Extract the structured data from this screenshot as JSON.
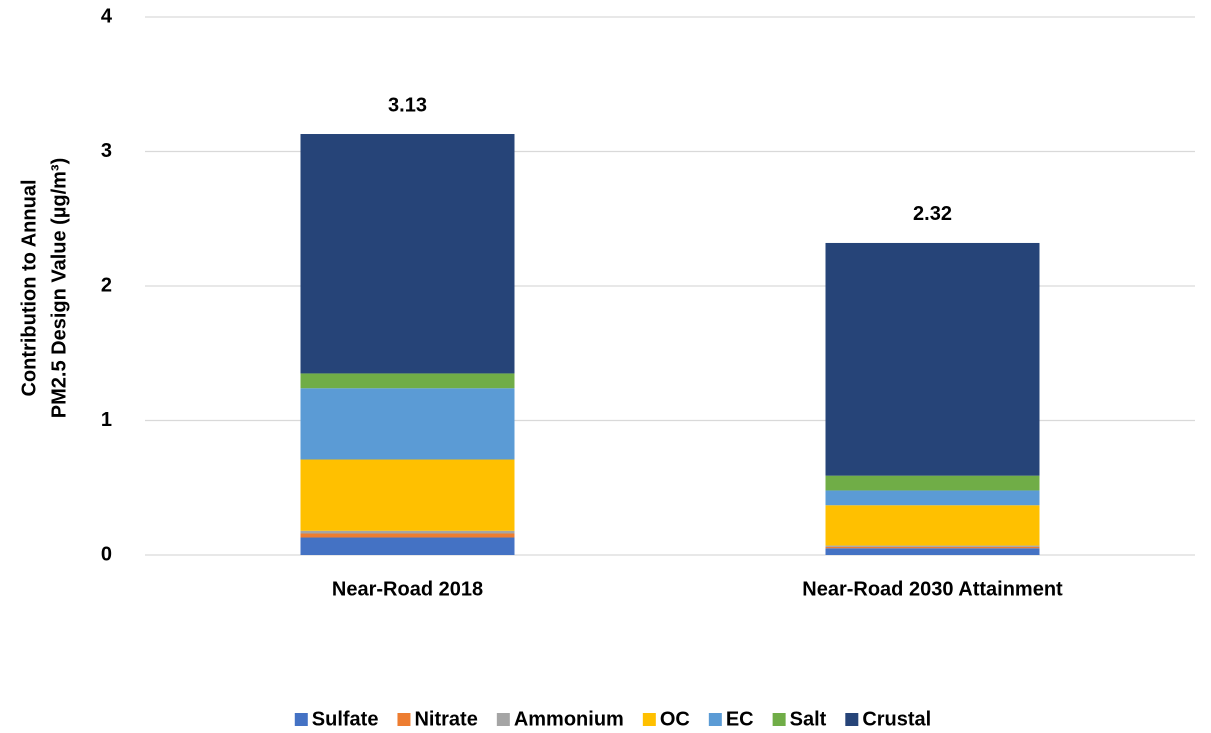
{
  "chart_data": {
    "type": "stacked_bar",
    "ylabel": [
      "Contribution to Annual",
      "PM2.5 Design Value (µg/m³)"
    ],
    "categories": [
      "Near-Road 2018",
      "Near-Road 2030 Attainment"
    ],
    "series": [
      {
        "name": "Sulfate",
        "color": "#4472c4",
        "values": [
          0.13,
          0.05
        ]
      },
      {
        "name": "Nitrate",
        "color": "#ed7d31",
        "values": [
          0.03,
          0.01
        ]
      },
      {
        "name": "Ammonium",
        "color": "#a5a5a5",
        "values": [
          0.02,
          0.01
        ]
      },
      {
        "name": "OC",
        "color": "#ffc000",
        "values": [
          0.53,
          0.3
        ]
      },
      {
        "name": "EC",
        "color": "#5b9bd5",
        "values": [
          0.53,
          0.11
        ]
      },
      {
        "name": "Salt",
        "color": "#70ad47",
        "values": [
          0.11,
          0.11
        ]
      },
      {
        "name": "Crustal",
        "color": "#264478",
        "values": [
          1.78,
          1.73
        ]
      }
    ],
    "totals": [
      3.13,
      2.32
    ],
    "ylim": [
      0,
      4
    ],
    "yticks": [
      0,
      1,
      2,
      3,
      4
    ],
    "grid": true,
    "legend": "bottom"
  }
}
